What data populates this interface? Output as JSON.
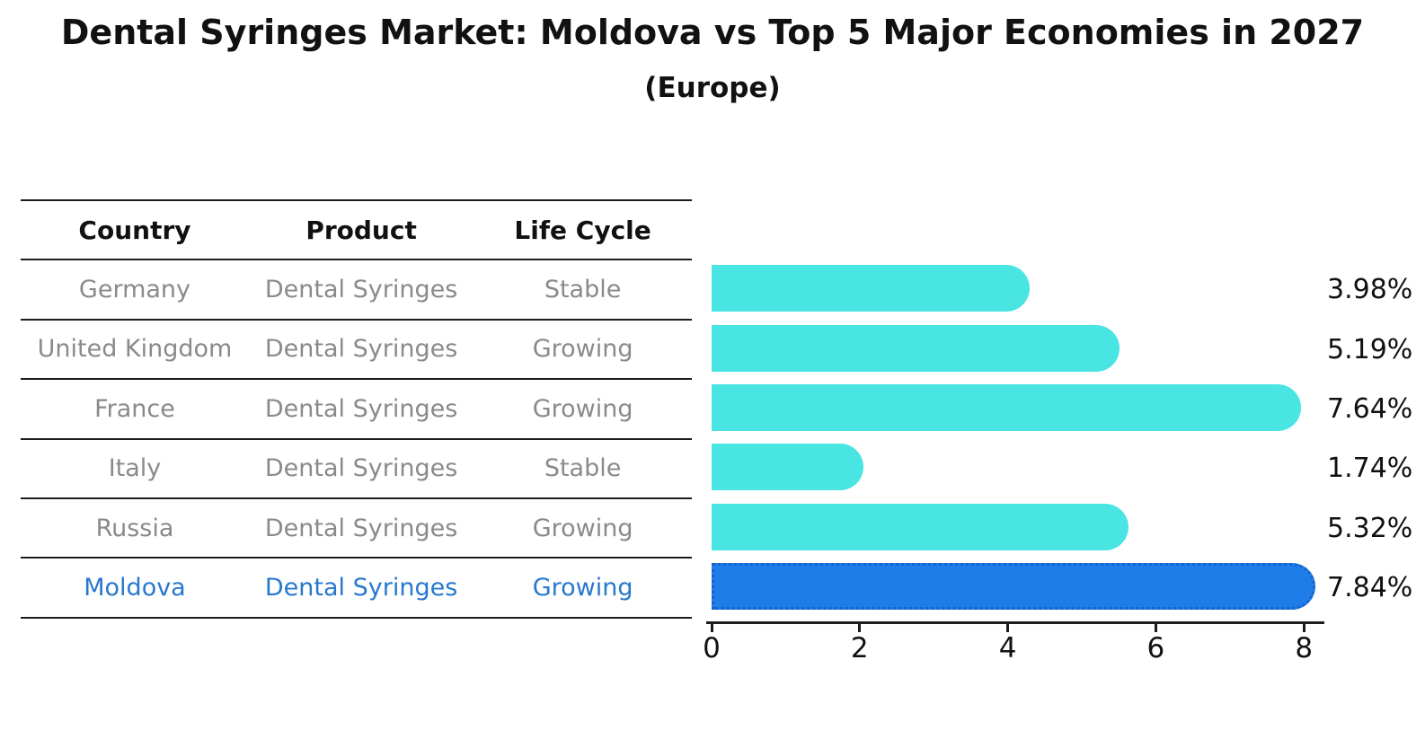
{
  "title": "Dental Syringes Market: Moldova vs Top 5 Major Economies in 2027",
  "subtitle": "(Europe)",
  "table": {
    "columns": [
      "Country",
      "Product",
      "Life Cycle"
    ],
    "rows": [
      {
        "country": "Germany",
        "product": "Dental Syringes",
        "life_cycle": "Stable",
        "highlight": false
      },
      {
        "country": "United Kingdom",
        "product": "Dental Syringes",
        "life_cycle": "Growing",
        "highlight": false
      },
      {
        "country": "France",
        "product": "Dental Syringes",
        "life_cycle": "Growing",
        "highlight": false
      },
      {
        "country": "Italy",
        "product": "Dental Syringes",
        "life_cycle": "Stable",
        "highlight": false
      },
      {
        "country": "Russia",
        "product": "Dental Syringes",
        "life_cycle": "Growing",
        "highlight": false
      },
      {
        "country": "Moldova",
        "product": "Dental Syringes",
        "life_cycle": "Growing",
        "highlight": true
      }
    ]
  },
  "chart_data": {
    "type": "bar",
    "orientation": "horizontal",
    "title": "Dental Syringes Market: Moldova vs Top 5 Major Economies in 2027",
    "subtitle": "(Europe)",
    "categories": [
      "Germany",
      "United Kingdom",
      "France",
      "Italy",
      "Russia",
      "Moldova"
    ],
    "values": [
      3.98,
      5.19,
      7.64,
      1.74,
      5.32,
      7.84
    ],
    "value_labels": [
      "3.98%",
      "5.19%",
      "7.64%",
      "1.74%",
      "5.32%",
      "7.84%"
    ],
    "xlim": [
      0,
      8.5
    ],
    "x_ticks": [
      0,
      2,
      4,
      6,
      8
    ],
    "grid": false,
    "legend": false,
    "bar_color": "#48e5e3",
    "highlight_bar_color": "#1e7de8",
    "highlight_index": 5
  },
  "colors": {
    "background": "#ffffff",
    "bar": "#48e5e3",
    "highlight_bar": "#1e7de8",
    "highlight_border": "#1563c8",
    "highlight_text": "#2878ce",
    "table_text": "#8a8a8a",
    "heading_text": "#111111",
    "line": "#1c1c1c"
  }
}
